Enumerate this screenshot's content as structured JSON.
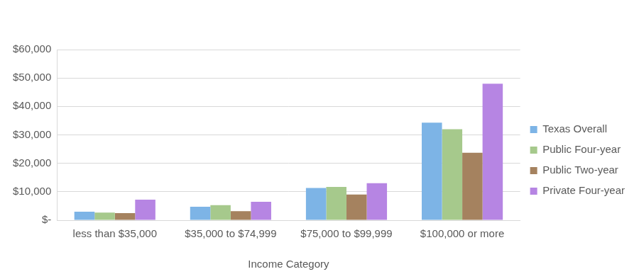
{
  "chart_data": {
    "type": "bar",
    "x_label": "Income Category",
    "categories": [
      "less than $35,000",
      "$35,000 to $74,999",
      "$75,000 to $99,999",
      "$100,000 or more"
    ],
    "series": [
      {
        "name": "Texas Overall",
        "color": "#7db4e6",
        "values": [
          3000,
          4700,
          11300,
          34300
        ]
      },
      {
        "name": "Public Four-year",
        "color": "#a6c98c",
        "values": [
          2700,
          5300,
          11700,
          32000
        ]
      },
      {
        "name": "Public Two-year",
        "color": "#a5825f",
        "values": [
          2500,
          3200,
          9000,
          23700
        ]
      },
      {
        "name": "Private Four-year",
        "color": "#b685e3",
        "values": [
          7200,
          6500,
          13000,
          48000
        ]
      }
    ],
    "ylim": [
      0,
      60000
    ],
    "yticks": [
      {
        "value": 0,
        "label": "$-"
      },
      {
        "value": 10000,
        "label": "$10,000"
      },
      {
        "value": 20000,
        "label": "$20,000"
      },
      {
        "value": 30000,
        "label": "$30,000"
      },
      {
        "value": 40000,
        "label": "$40,000"
      },
      {
        "value": 50000,
        "label": "$50,000"
      },
      {
        "value": 60000,
        "label": "$60,000"
      }
    ],
    "grid": true,
    "legend": "right"
  }
}
